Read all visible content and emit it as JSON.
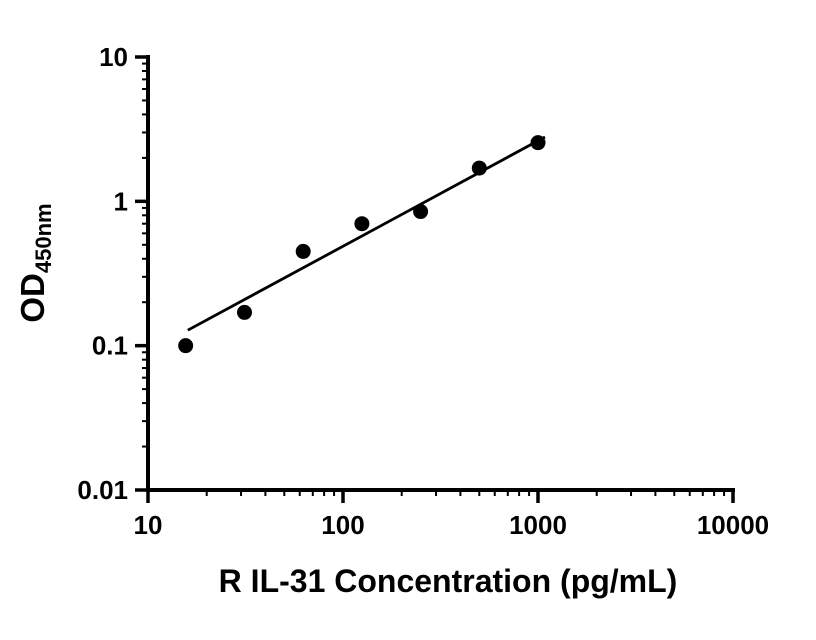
{
  "chart_data": {
    "type": "scatter",
    "title": "",
    "xlabel": "R IL-31 Concentration (pg/mL)",
    "ylabel_main": "OD",
    "ylabel_sub": "450nm",
    "x_scale": "log",
    "y_scale": "log",
    "xlim": [
      10,
      10000
    ],
    "ylim": [
      0.01,
      10
    ],
    "x_ticks": [
      10,
      100,
      1000,
      10000
    ],
    "x_tick_labels": [
      "10",
      "100",
      "1000",
      "10000"
    ],
    "y_ticks": [
      0.01,
      0.1,
      1,
      10
    ],
    "y_tick_labels": [
      "0.01",
      "0.1",
      "1",
      "10"
    ],
    "grid": "off",
    "legend": "none",
    "points": [
      {
        "x": 15.6,
        "y": 0.1
      },
      {
        "x": 31.25,
        "y": 0.17
      },
      {
        "x": 62.5,
        "y": 0.45
      },
      {
        "x": 125,
        "y": 0.7
      },
      {
        "x": 250,
        "y": 0.85
      },
      {
        "x": 500,
        "y": 1.7
      },
      {
        "x": 1000,
        "y": 2.55
      }
    ],
    "trend_line": {
      "x_start": 16,
      "y_start": 0.128,
      "x_end": 1086,
      "y_end": 2.79
    },
    "marker": {
      "shape": "circle",
      "color": "#000000",
      "radius": 7.5
    },
    "line_color": "#000000",
    "axis_color": "#000000",
    "background": "#ffffff"
  }
}
